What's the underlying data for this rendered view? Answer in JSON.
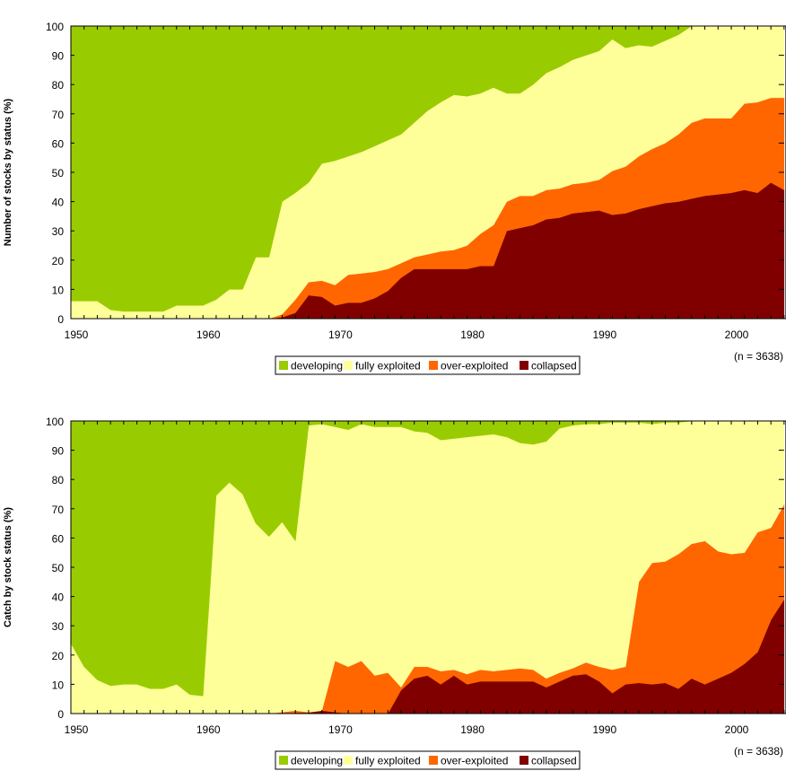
{
  "chart_data": [
    {
      "type": "area",
      "stacked": true,
      "ylabel": "Number of stocks by status (%)",
      "xlabel": "",
      "xlim": [
        1950,
        2004
      ],
      "ylim": [
        0,
        100
      ],
      "x_ticks": [
        "1950",
        "1960",
        "1970",
        "1980",
        "1990",
        "2000"
      ],
      "y_ticks": [
        "0",
        "10",
        "20",
        "30",
        "40",
        "50",
        "60",
        "70",
        "80",
        "90",
        "100"
      ],
      "legend": [
        "developing",
        "fully exploited",
        "over-exploited",
        "collapsed"
      ],
      "legend_position": "bottom-center",
      "note": "(n = 3638)",
      "x": [
        1950,
        1951,
        1952,
        1953,
        1954,
        1955,
        1956,
        1957,
        1958,
        1959,
        1960,
        1961,
        1962,
        1963,
        1964,
        1965,
        1966,
        1967,
        1968,
        1969,
        1970,
        1971,
        1972,
        1973,
        1974,
        1975,
        1976,
        1977,
        1978,
        1979,
        1980,
        1981,
        1982,
        1983,
        1984,
        1985,
        1986,
        1987,
        1988,
        1989,
        1990,
        1991,
        1992,
        1993,
        1994,
        1995,
        1996,
        1997,
        1998,
        1999,
        2000,
        2001,
        2002,
        2003,
        2004
      ],
      "series": [
        {
          "name": "collapsed",
          "values": [
            0,
            0,
            0,
            0,
            0,
            0,
            0,
            0,
            0,
            0,
            0,
            0,
            0,
            0,
            0,
            0,
            0.5,
            2,
            8,
            7.5,
            4.5,
            5.5,
            5.5,
            7,
            9.5,
            14,
            17,
            17,
            17,
            17,
            17,
            18,
            18,
            30,
            31,
            32,
            34,
            34.5,
            36,
            36.5,
            37,
            35.5,
            36,
            37.5,
            38.5,
            39.5,
            40,
            41,
            42,
            42.5,
            43,
            44,
            43,
            46.5,
            44
          ]
        },
        {
          "name": "over-exploited",
          "values": [
            0,
            0,
            0,
            0,
            0,
            0,
            0,
            0,
            0,
            0,
            0,
            0,
            0,
            0,
            0,
            0,
            1,
            4.5,
            4.5,
            5.5,
            7,
            9.5,
            10,
            9,
            7.5,
            5,
            4,
            5,
            6,
            6.5,
            8,
            11,
            14,
            10,
            11,
            10,
            10,
            10,
            10,
            10,
            10.5,
            15,
            16,
            18,
            19.5,
            20.5,
            23,
            26,
            26.5,
            26,
            25.5,
            29.5,
            31,
            29,
            31.5
          ]
        },
        {
          "name": "fully exploited",
          "values": [
            6,
            6,
            6,
            3,
            2.5,
            2.5,
            2.5,
            2.5,
            4.5,
            4.5,
            4.5,
            6.5,
            10,
            10,
            21,
            21,
            38.5,
            36.5,
            34,
            40,
            42.5,
            40.5,
            41.5,
            43,
            44,
            44,
            46,
            49,
            51,
            53,
            51,
            48,
            47,
            37,
            35,
            38,
            40,
            41.5,
            42.5,
            43.5,
            44,
            45,
            40.5,
            38,
            35,
            35,
            34,
            33,
            31.5,
            31.5,
            31.5,
            26.5,
            26,
            24.5,
            24.5
          ]
        },
        {
          "name": "developing",
          "values": [
            94,
            94,
            94,
            97,
            97.5,
            97.5,
            97.5,
            97.5,
            95.5,
            95.5,
            95.5,
            93.5,
            90,
            90,
            79,
            79,
            60,
            57,
            53.5,
            47,
            46,
            44.5,
            43,
            41,
            39,
            37,
            33,
            29,
            26,
            23.5,
            24,
            23,
            21,
            23,
            23,
            20,
            16,
            14,
            11.5,
            10,
            8.5,
            4.5,
            7.5,
            6.5,
            7,
            5,
            3,
            0,
            0,
            0,
            0,
            0,
            0,
            0,
            0
          ]
        }
      ]
    },
    {
      "type": "area",
      "stacked": true,
      "ylabel": "Catch by stock status (%)",
      "xlabel": "",
      "xlim": [
        1950,
        2004
      ],
      "ylim": [
        0,
        100
      ],
      "x_ticks": [
        "1950",
        "1960",
        "1970",
        "1980",
        "1990",
        "2000"
      ],
      "y_ticks": [
        "0",
        "10",
        "20",
        "30",
        "40",
        "50",
        "60",
        "70",
        "80",
        "90",
        "100"
      ],
      "legend": [
        "developing",
        "fully exploited",
        "over-exploited",
        "collapsed"
      ],
      "legend_position": "bottom-center",
      "note": "(n = 3638)",
      "x": [
        1950,
        1951,
        1952,
        1953,
        1954,
        1955,
        1956,
        1957,
        1958,
        1959,
        1960,
        1961,
        1962,
        1963,
        1964,
        1965,
        1966,
        1967,
        1968,
        1969,
        1970,
        1971,
        1972,
        1973,
        1974,
        1975,
        1976,
        1977,
        1978,
        1979,
        1980,
        1981,
        1982,
        1983,
        1984,
        1985,
        1986,
        1987,
        1988,
        1989,
        1990,
        1991,
        1992,
        1993,
        1994,
        1995,
        1996,
        1997,
        1998,
        1999,
        2000,
        2001,
        2002,
        2003,
        2004
      ],
      "series": [
        {
          "name": "collapsed",
          "values": [
            0,
            0,
            0,
            0,
            0,
            0,
            0,
            0,
            0,
            0,
            0,
            0,
            0,
            0,
            0,
            0,
            0,
            0.3,
            0.3,
            1,
            0.5,
            0,
            0,
            0,
            0,
            8,
            12,
            13,
            10,
            13,
            10,
            11,
            11,
            11,
            11,
            11,
            9,
            11,
            13,
            13.5,
            11,
            7,
            10,
            10.5,
            10,
            10.5,
            8.5,
            12,
            10,
            12,
            14,
            17,
            21,
            32,
            39
          ]
        },
        {
          "name": "over-exploited",
          "values": [
            0,
            0,
            0,
            0,
            0,
            0,
            0,
            0,
            0,
            0,
            0,
            0,
            0,
            0,
            0,
            0,
            0.5,
            0.7,
            0.2,
            0,
            17.5,
            16,
            18,
            13,
            14,
            1,
            4,
            3,
            4.5,
            2,
            3.5,
            4,
            3.5,
            4,
            4.5,
            4,
            3,
            3,
            2.5,
            4,
            5,
            8,
            6,
            34.5,
            41.5,
            41.5,
            46,
            46,
            49,
            43.5,
            40.5,
            38,
            41,
            31.5,
            32.5
          ]
        },
        {
          "name": "fully exploited",
          "values": [
            24,
            16,
            11.5,
            9.5,
            10,
            10,
            8.5,
            8.5,
            10,
            6.5,
            6,
            74.5,
            79,
            75,
            65,
            60.5,
            65,
            58,
            98,
            98,
            80,
            81,
            81,
            85,
            84,
            89,
            80.5,
            80,
            79,
            79,
            81,
            80,
            81,
            79.5,
            77,
            77,
            81,
            83.5,
            83,
            81.5,
            83,
            84.5,
            83.5,
            54.5,
            47.5,
            47.5,
            45,
            42,
            41,
            44.5,
            45.5,
            45,
            38,
            36.5,
            28.5
          ]
        },
        {
          "name": "developing",
          "values": [
            76,
            84,
            88.5,
            90.5,
            90,
            90,
            91.5,
            91.5,
            90,
            93.5,
            94,
            25.5,
            21,
            25,
            35,
            39.5,
            34.5,
            41,
            1.5,
            1,
            2,
            3,
            1,
            2,
            2,
            2,
            3.5,
            4,
            6.5,
            6,
            5.5,
            5,
            4.5,
            5.5,
            7.5,
            8,
            7,
            2.5,
            1.5,
            1,
            1,
            0.5,
            0.5,
            1,
            1,
            0.5,
            0.5,
            0,
            0,
            0,
            0,
            0,
            0,
            0,
            0
          ]
        }
      ]
    }
  ],
  "colors": {
    "developing": "#99cc00",
    "fully exploited": "#ffff99",
    "over-exploited": "#ff6600",
    "collapsed": "#800000"
  }
}
